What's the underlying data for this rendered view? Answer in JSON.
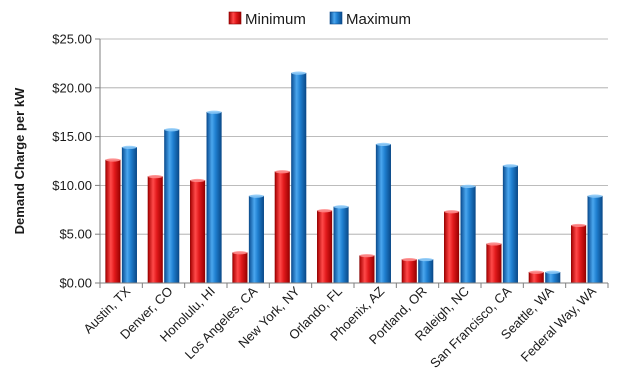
{
  "chart_data": {
    "type": "bar",
    "title": "",
    "xlabel": "",
    "ylabel": "Demand Charge per kW",
    "ylim": [
      0,
      25
    ],
    "yticks": [
      0,
      5,
      10,
      15,
      20,
      25
    ],
    "ytick_labels": [
      "$0.00",
      "$5.00",
      "$10.00",
      "$15.00",
      "$20.00",
      "$25.00"
    ],
    "grid": true,
    "legend_position": "top-center",
    "categories": [
      "Austin, TX",
      "Denver, CO",
      "Honolulu, HI",
      "Los Angeles, CA",
      "New York, NY",
      "Orlando, FL",
      "Phoenix, AZ",
      "Portland, OR",
      "Raleigh, NC",
      "San Francisco, CA",
      "Seattle, WA",
      "Federal Way, WA"
    ],
    "series": [
      {
        "name": "Minimum",
        "color": "#e31a1c",
        "values": [
          12.6,
          10.9,
          10.5,
          3.1,
          11.4,
          7.4,
          2.8,
          2.4,
          7.3,
          4.0,
          1.1,
          5.9
        ]
      },
      {
        "name": "Maximum",
        "color": "#1f7fd0",
        "values": [
          13.9,
          15.7,
          17.5,
          8.9,
          21.5,
          7.8,
          14.2,
          2.4,
          9.9,
          12.0,
          1.1,
          8.9
        ]
      }
    ]
  }
}
